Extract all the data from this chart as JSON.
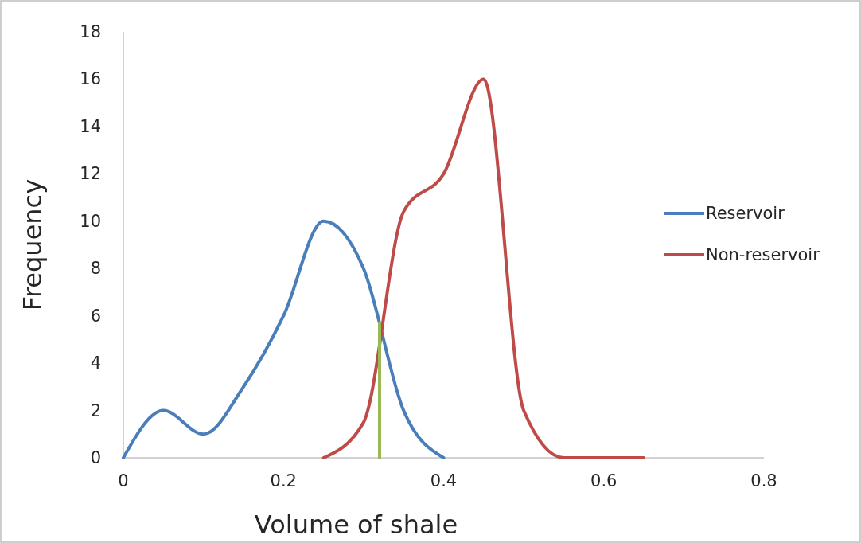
{
  "chart_data": {
    "type": "line",
    "xlabel": "Volume of shale",
    "ylabel": "Frequency",
    "xlim": [
      0,
      0.8
    ],
    "xticks": [
      0,
      0.2,
      0.4,
      0.6,
      0.8
    ],
    "ylim": [
      0,
      18
    ],
    "yticks": [
      0,
      2,
      4,
      6,
      8,
      10,
      12,
      14,
      16,
      18
    ],
    "grid": false,
    "legend": "right",
    "marker": "none",
    "line_style": "solid",
    "series": [
      {
        "name": "Reservoir",
        "color": "#4a7ebb",
        "x": [
          0,
          0.05,
          0.1,
          0.15,
          0.2,
          0.25,
          0.3,
          0.35,
          0.4
        ],
        "values": [
          0,
          2,
          1,
          3,
          6,
          10,
          8,
          2,
          0
        ]
      },
      {
        "name": "Non-reservoir",
        "color": "#be4b48",
        "x": [
          0.25,
          0.3,
          0.35,
          0.4,
          0.45,
          0.5,
          0.55,
          0.6,
          0.65
        ],
        "values": [
          0,
          1.5,
          10.4,
          12,
          16,
          2,
          0,
          0,
          0
        ]
      },
      {
        "color": "#98b954",
        "x": [
          0.32,
          0.32
        ],
        "values": [
          0,
          5.7
        ]
      }
    ]
  }
}
